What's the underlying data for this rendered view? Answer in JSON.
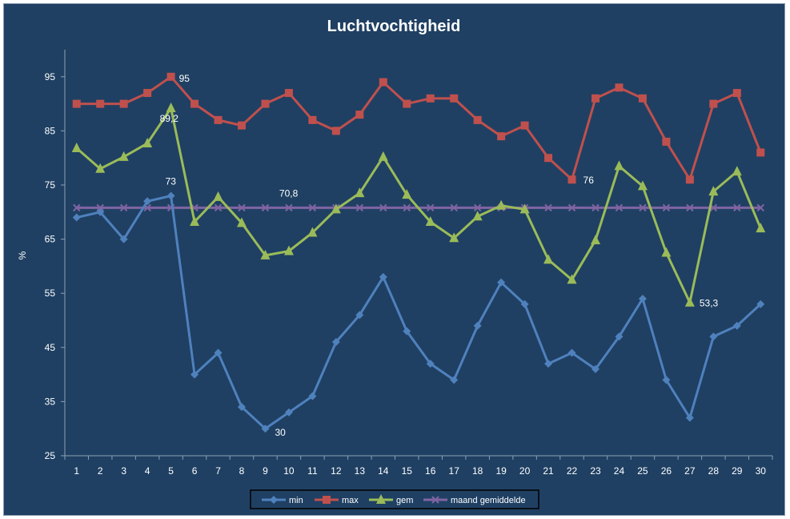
{
  "chart_data": {
    "type": "line",
    "title": "Luchtvochtigheid",
    "ylabel": "%",
    "xlabel": "",
    "ylim": [
      25,
      100
    ],
    "yticks": [
      25,
      35,
      45,
      55,
      65,
      75,
      85,
      95
    ],
    "categories": [
      "1",
      "2",
      "3",
      "4",
      "5",
      "6",
      "7",
      "8",
      "9",
      "10",
      "11",
      "12",
      "13",
      "14",
      "15",
      "16",
      "17",
      "18",
      "19",
      "20",
      "21",
      "22",
      "23",
      "24",
      "25",
      "26",
      "27",
      "28",
      "29",
      "30"
    ],
    "series": [
      {
        "name": "min",
        "color": "#4f81bd",
        "marker": "diamond",
        "values": [
          69,
          70,
          65,
          72,
          73,
          40,
          44,
          34,
          30,
          33,
          36,
          46,
          51,
          58,
          48,
          42,
          39,
          49,
          57,
          53,
          42,
          44,
          41,
          47,
          54,
          39,
          32,
          47,
          49,
          53
        ]
      },
      {
        "name": "max",
        "color": "#c0504d",
        "marker": "square",
        "values": [
          90,
          90,
          90,
          92,
          95,
          90,
          87,
          86,
          90,
          92,
          87,
          85,
          88,
          94,
          90,
          91,
          91,
          87,
          84,
          86,
          80,
          76,
          91,
          93,
          91,
          83,
          76,
          90,
          92,
          81
        ]
      },
      {
        "name": "gem",
        "color": "#9bbb59",
        "marker": "triangle",
        "values": [
          81.8,
          78,
          80.2,
          82.7,
          89.2,
          68.2,
          72.8,
          68,
          62,
          62.8,
          66.2,
          70.5,
          73.5,
          80.2,
          73.2,
          68.2,
          65.2,
          69.2,
          71.2,
          70.5,
          61.2,
          57.5,
          64.8,
          78.5,
          74.8,
          62.5,
          53.3,
          73.8,
          77.5,
          67
        ]
      },
      {
        "name": "maand gemiddelde",
        "color": "#8064a2",
        "marker": "x",
        "values": [
          70.8,
          70.8,
          70.8,
          70.8,
          70.8,
          70.8,
          70.8,
          70.8,
          70.8,
          70.8,
          70.8,
          70.8,
          70.8,
          70.8,
          70.8,
          70.8,
          70.8,
          70.8,
          70.8,
          70.8,
          70.8,
          70.8,
          70.8,
          70.8,
          70.8,
          70.8,
          70.8,
          70.8,
          70.8,
          70.8
        ]
      }
    ],
    "annotations": [
      {
        "series": "max",
        "index": 4,
        "text": "95"
      },
      {
        "series": "gem",
        "index": 4,
        "text": "89,2"
      },
      {
        "series": "min",
        "index": 4,
        "text": "73"
      },
      {
        "series": "maand gemiddelde",
        "index": 9,
        "text": "70,8"
      },
      {
        "series": "min",
        "index": 8,
        "text": "30"
      },
      {
        "series": "max",
        "index": 21,
        "text": "76"
      },
      {
        "series": "gem",
        "index": 26,
        "text": "53,3"
      }
    ],
    "grid": false,
    "legend_position": "bottom"
  }
}
